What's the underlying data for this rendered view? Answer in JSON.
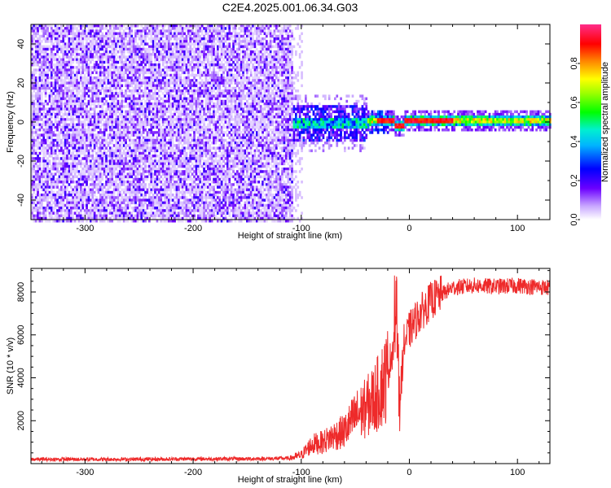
{
  "figure": {
    "title": "C2E4.2025.001.06.34.G03"
  },
  "chart_data": [
    {
      "type": "heatmap",
      "xlabel": "Height of straight line (km)",
      "ylabel": "Frequency (Hz)",
      "xlim": [
        -350,
        130
      ],
      "ylim": [
        -50,
        50
      ],
      "xticks": [
        -300,
        -200,
        -100,
        0,
        100
      ],
      "yticks": [
        -40,
        -20,
        0,
        20,
        40
      ],
      "colorbar": {
        "label": "Normalized spectral amplitude",
        "range": [
          0.0,
          1.0
        ],
        "ticks": [
          0.0,
          0.2,
          0.4,
          0.6,
          0.8
        ],
        "colormap": "rainbow (white-violet-blue-cyan-green-yellow-red-pink)"
      },
      "description_regions": [
        {
          "x_range": [
            -350,
            -108
          ],
          "freq_range": [
            -50,
            50
          ],
          "amplitude": [
            0.0,
            0.15
          ]
        },
        {
          "x_range": [
            -108,
            -40
          ],
          "freq_center": 0,
          "freq_halfwidth": 10,
          "amplitude": [
            0.15,
            0.55
          ]
        },
        {
          "x_range": [
            -40,
            130
          ],
          "freq_center": 1,
          "freq_halfwidth": 3,
          "amplitude": [
            0.5,
            1.0
          ]
        }
      ],
      "colors": {
        "low": "#e0ccff",
        "mid": "#7a1cff",
        "high": "#ff1a1a"
      }
    },
    {
      "type": "line",
      "xlabel": "Height of straight line (km)",
      "ylabel": "SNR (10 * v/v)",
      "xlim": [
        -350,
        130
      ],
      "ylim": [
        0,
        9100
      ],
      "xticks": [
        -300,
        -200,
        -100,
        0,
        100
      ],
      "yticks": [
        2000,
        4000,
        6000,
        8000
      ],
      "series": [
        {
          "color": "#ee2a2a",
          "x": [
            -350,
            -300,
            -250,
            -200,
            -150,
            -110,
            -100,
            -90,
            -80,
            -70,
            -60,
            -50,
            -40,
            -30,
            -20,
            -15,
            -12,
            -10,
            -8,
            -5,
            0,
            10,
            20,
            30,
            40,
            60,
            80,
            100,
            130
          ],
          "y": [
            200,
            200,
            200,
            220,
            220,
            250,
            400,
            900,
            1000,
            1300,
            1500,
            2200,
            2600,
            3200,
            4200,
            5500,
            6200,
            5000,
            3500,
            5600,
            6200,
            7000,
            7600,
            7900,
            8200,
            8300,
            8250,
            8300,
            8200
          ]
        }
      ]
    }
  ]
}
